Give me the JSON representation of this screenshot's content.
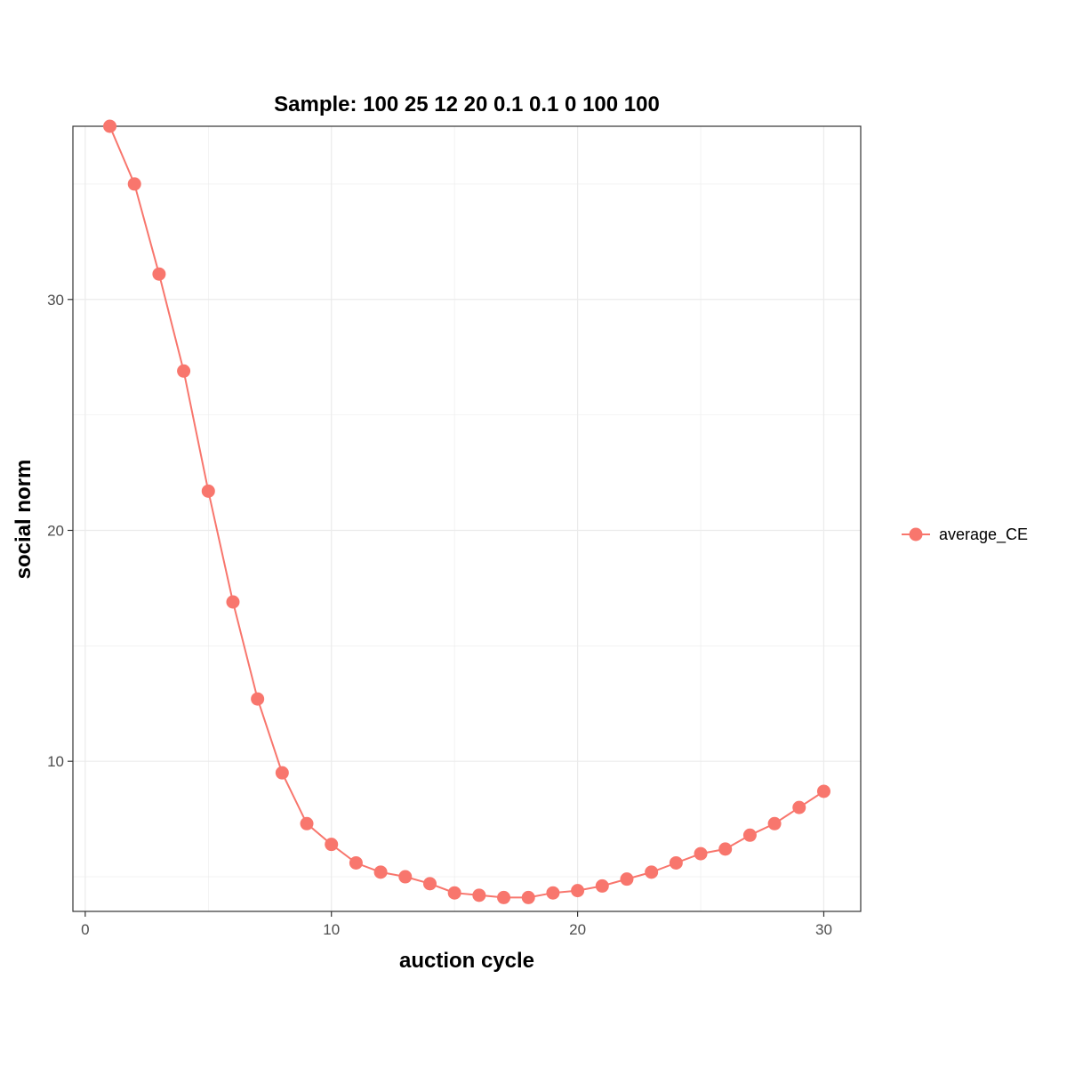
{
  "chart_data": {
    "type": "line",
    "title": "Sample: 100 25 12 20 0.1 0.1 0 100 100",
    "xlabel": "auction cycle",
    "ylabel": "social norm",
    "xlim": [
      -0.5,
      31.5
    ],
    "ylim": [
      3.5,
      37.5
    ],
    "x_ticks": [
      0,
      10,
      20,
      30
    ],
    "y_ticks": [
      10,
      20,
      30
    ],
    "x_tick_labels": [
      "0",
      "10",
      "20",
      "30"
    ],
    "y_tick_labels": [
      "10",
      "20",
      "30"
    ],
    "grid": true,
    "legend_position": "right",
    "series": [
      {
        "name": "average_CE",
        "color": "#F8766D",
        "x": [
          1,
          2,
          3,
          4,
          5,
          6,
          7,
          8,
          9,
          10,
          11,
          12,
          13,
          14,
          15,
          16,
          17,
          18,
          19,
          20,
          21,
          22,
          23,
          24,
          25,
          26,
          27,
          28,
          29,
          30
        ],
        "y": [
          37.5,
          35.0,
          31.1,
          26.9,
          21.7,
          16.9,
          12.7,
          9.5,
          7.3,
          6.4,
          5.6,
          5.2,
          5.0,
          4.7,
          4.3,
          4.2,
          4.1,
          4.1,
          4.3,
          4.4,
          4.6,
          4.9,
          5.2,
          5.6,
          6.0,
          6.2,
          6.8,
          7.3,
          8.0,
          8.7
        ]
      }
    ]
  }
}
